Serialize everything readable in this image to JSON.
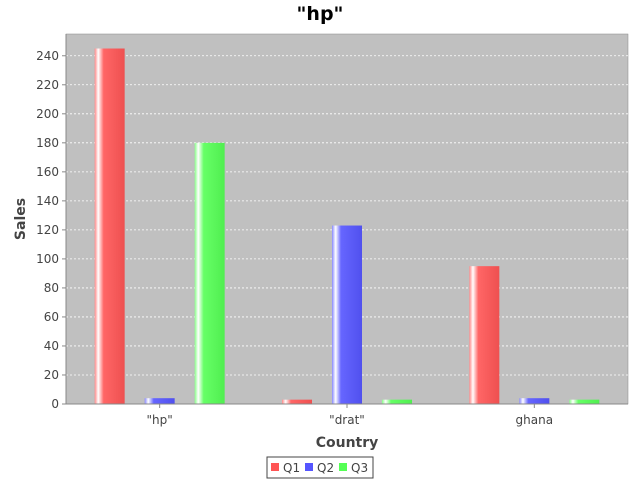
{
  "chart_data": {
    "type": "bar",
    "title": "\"hp\"",
    "xlabel": "Country",
    "ylabel": "Sales",
    "categories": [
      "\"hp\"",
      "\"drat\"",
      "ghana"
    ],
    "series": [
      {
        "name": "Q1",
        "color": "#ff5555",
        "values": [
          245,
          3,
          95
        ]
      },
      {
        "name": "Q2",
        "color": "#5555ff",
        "values": [
          4,
          123,
          4
        ]
      },
      {
        "name": "Q3",
        "color": "#55ff55",
        "values": [
          180,
          3,
          3
        ]
      }
    ],
    "ylim": [
      0,
      255
    ],
    "yticks": [
      0,
      20,
      40,
      60,
      80,
      100,
      120,
      140,
      160,
      180,
      200,
      220,
      240
    ],
    "grid": true,
    "legend_position": "bottom",
    "plot_background": "#c0c0c0"
  }
}
